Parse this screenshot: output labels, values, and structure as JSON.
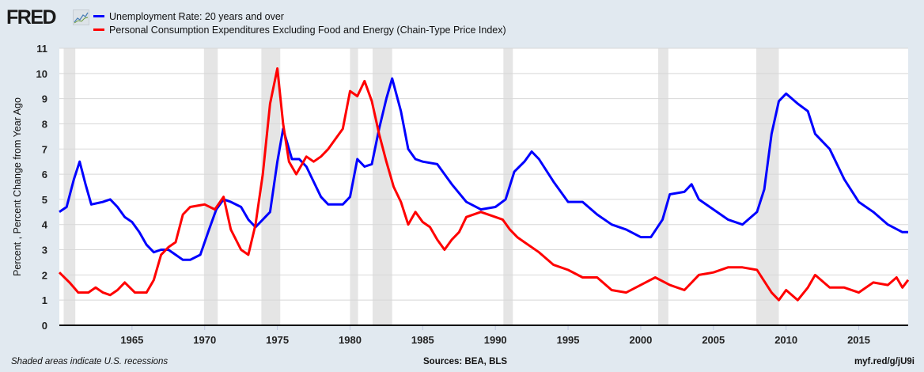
{
  "header": {
    "logo": "FRED"
  },
  "footer": {
    "note": "Shaded areas indicate U.S. recessions",
    "sources": "Sources: BEA, BLS",
    "link": "myf.red/g/jU9i"
  },
  "chart_data": {
    "type": "line",
    "title": "",
    "xlabel": "",
    "ylabel": "Percent , Percent Change from Year Ago",
    "xlim": [
      1960.0,
      2018.4
    ],
    "ylim": [
      0,
      11
    ],
    "yticks": [
      "0",
      "1",
      "2",
      "3",
      "4",
      "5",
      "6",
      "7",
      "8",
      "9",
      "10",
      "11"
    ],
    "xticks": [
      "1965",
      "1970",
      "1975",
      "1980",
      "1985",
      "1990",
      "1995",
      "2000",
      "2005",
      "2010",
      "2015"
    ],
    "grid": true,
    "legend": "top-left",
    "recessions": [
      [
        1960.3,
        1961.1
      ],
      [
        1969.95,
        1970.9
      ],
      [
        1973.9,
        1975.2
      ],
      [
        1980.0,
        1980.55
      ],
      [
        1981.55,
        1982.9
      ],
      [
        1990.55,
        1991.2
      ],
      [
        2001.2,
        2001.9
      ],
      [
        2007.95,
        2009.5
      ]
    ],
    "series": [
      {
        "name": "Unemployment Rate: 20 years and over",
        "color": "#0000ff",
        "x": [
          1960.0,
          1960.5,
          1961.0,
          1961.4,
          1961.8,
          1962.2,
          1963.0,
          1963.5,
          1964.0,
          1964.5,
          1965.0,
          1965.5,
          1966.0,
          1966.5,
          1967.0,
          1967.5,
          1968.0,
          1968.5,
          1969.0,
          1969.7,
          1970.3,
          1970.8,
          1971.3,
          1971.8,
          1972.5,
          1973.0,
          1973.5,
          1974.0,
          1974.5,
          1975.0,
          1975.4,
          1976.0,
          1976.5,
          1977.0,
          1977.5,
          1978.0,
          1978.5,
          1979.0,
          1979.5,
          1980.0,
          1980.5,
          1981.0,
          1981.5,
          1982.0,
          1982.5,
          1982.9,
          1983.5,
          1984.0,
          1984.5,
          1985.0,
          1986.0,
          1987.0,
          1988.0,
          1989.0,
          1990.0,
          1990.7,
          1991.3,
          1992.0,
          1992.5,
          1993.0,
          1994.0,
          1995.0,
          1996.0,
          1997.0,
          1998.0,
          1999.0,
          2000.0,
          2000.7,
          2001.5,
          2002.0,
          2003.0,
          2003.5,
          2004.0,
          2005.0,
          2006.0,
          2007.0,
          2008.0,
          2008.5,
          2009.0,
          2009.5,
          2010.0,
          2010.8,
          2011.5,
          2012.0,
          2013.0,
          2014.0,
          2015.0,
          2016.0,
          2017.0,
          2018.0,
          2018.4
        ],
        "values": [
          4.5,
          4.7,
          5.8,
          6.5,
          5.6,
          4.8,
          4.9,
          5.0,
          4.7,
          4.3,
          4.1,
          3.7,
          3.2,
          2.9,
          3.0,
          3.0,
          2.8,
          2.6,
          2.6,
          2.8,
          3.8,
          4.6,
          5.0,
          4.9,
          4.7,
          4.2,
          3.9,
          4.2,
          4.5,
          6.5,
          7.8,
          6.6,
          6.6,
          6.3,
          5.7,
          5.1,
          4.8,
          4.8,
          4.8,
          5.1,
          6.6,
          6.3,
          6.4,
          7.8,
          9.0,
          9.8,
          8.5,
          7.0,
          6.6,
          6.5,
          6.4,
          5.6,
          4.9,
          4.6,
          4.7,
          5.0,
          6.1,
          6.5,
          6.9,
          6.6,
          5.7,
          4.9,
          4.9,
          4.4,
          4.0,
          3.8,
          3.5,
          3.5,
          4.2,
          5.2,
          5.3,
          5.6,
          5.0,
          4.6,
          4.2,
          4.0,
          4.5,
          5.4,
          7.6,
          8.9,
          9.2,
          8.8,
          8.5,
          7.6,
          7.0,
          5.8,
          4.9,
          4.5,
          4.0,
          3.7,
          3.7
        ]
      },
      {
        "name": "Personal Consumption Expenditures Excluding Food and Energy (Chain-Type Price Index)",
        "color": "#ff0000",
        "x": [
          1960.0,
          1960.7,
          1961.3,
          1962.0,
          1962.5,
          1963.0,
          1963.5,
          1964.0,
          1964.5,
          1965.2,
          1966.0,
          1966.5,
          1967.0,
          1967.5,
          1968.0,
          1968.5,
          1969.0,
          1970.0,
          1970.7,
          1971.3,
          1971.8,
          1972.5,
          1973.0,
          1973.5,
          1974.0,
          1974.5,
          1975.0,
          1975.4,
          1975.8,
          1976.3,
          1977.0,
          1977.5,
          1978.0,
          1978.5,
          1979.0,
          1979.5,
          1980.0,
          1980.5,
          1981.0,
          1981.5,
          1982.0,
          1982.5,
          1983.0,
          1983.5,
          1984.0,
          1984.5,
          1985.0,
          1985.5,
          1986.0,
          1986.5,
          1987.0,
          1987.5,
          1988.0,
          1989.0,
          1990.0,
          1990.5,
          1991.0,
          1991.5,
          1992.0,
          1993.0,
          1994.0,
          1995.0,
          1996.0,
          1997.0,
          1998.0,
          1999.0,
          2000.0,
          2001.0,
          2002.0,
          2003.0,
          2004.0,
          2005.0,
          2006.0,
          2007.0,
          2008.0,
          2009.0,
          2009.5,
          2010.0,
          2010.8,
          2011.5,
          2012.0,
          2013.0,
          2014.0,
          2015.0,
          2016.0,
          2017.0,
          2017.6,
          2018.0,
          2018.4
        ],
        "values": [
          2.1,
          1.7,
          1.3,
          1.3,
          1.5,
          1.3,
          1.2,
          1.4,
          1.7,
          1.3,
          1.3,
          1.8,
          2.8,
          3.1,
          3.3,
          4.4,
          4.7,
          4.8,
          4.6,
          5.1,
          3.8,
          3.0,
          2.8,
          4.0,
          6.0,
          8.8,
          10.2,
          8.0,
          6.5,
          6.0,
          6.7,
          6.5,
          6.7,
          7.0,
          7.4,
          7.8,
          9.3,
          9.1,
          9.7,
          8.9,
          7.6,
          6.5,
          5.5,
          4.9,
          4.0,
          4.5,
          4.1,
          3.9,
          3.4,
          3.0,
          3.4,
          3.7,
          4.3,
          4.5,
          4.3,
          4.2,
          3.8,
          3.5,
          3.3,
          2.9,
          2.4,
          2.2,
          1.9,
          1.9,
          1.4,
          1.3,
          1.6,
          1.9,
          1.6,
          1.4,
          2.0,
          2.1,
          2.3,
          2.3,
          2.2,
          1.3,
          1.0,
          1.4,
          1.0,
          1.5,
          2.0,
          1.5,
          1.5,
          1.3,
          1.7,
          1.6,
          1.9,
          1.5,
          1.8
        ]
      }
    ]
  }
}
